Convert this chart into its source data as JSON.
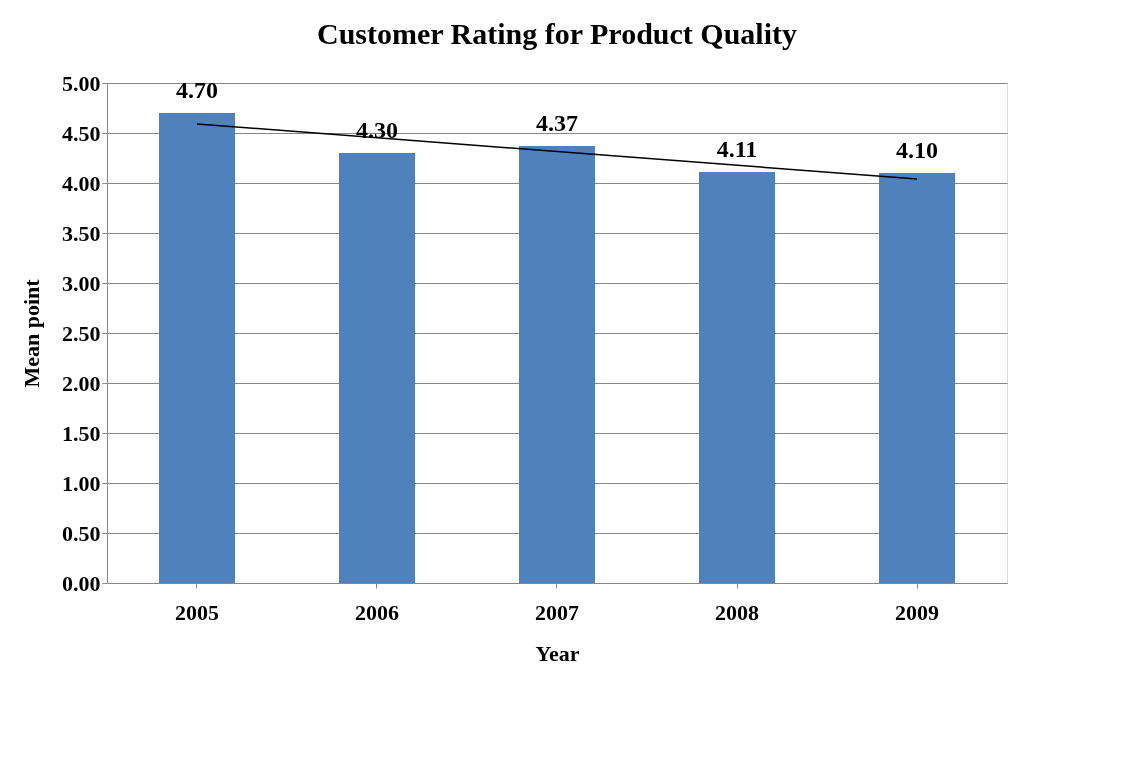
{
  "chart_data": {
    "type": "bar",
    "title": "Customer Rating for Product Quality",
    "xlabel": "Year",
    "ylabel": "Mean point",
    "categories": [
      "2005",
      "2006",
      "2007",
      "2008",
      "2009"
    ],
    "series": [
      {
        "color": "#4f81bd",
        "values": [
          4.7,
          4.3,
          4.37,
          4.11,
          4.1
        ],
        "value_labels": [
          "4.70",
          "4.30",
          "4.37",
          "4.11",
          "4.10"
        ]
      },
      {
        "type": "line",
        "color": "#000000",
        "values": [
          4.59,
          null,
          null,
          null,
          4.04
        ]
      }
    ],
    "ylim": [
      0,
      5
    ],
    "yticks": [
      {
        "value": 0,
        "label": "0.00"
      },
      {
        "value": 0.5,
        "label": "0.50"
      },
      {
        "value": 1,
        "label": "1.00"
      },
      {
        "value": 1.5,
        "label": "1.50"
      },
      {
        "value": 2,
        "label": "2.00"
      },
      {
        "value": 2.5,
        "label": "2.50"
      },
      {
        "value": 3,
        "label": "3.00"
      },
      {
        "value": 3.5,
        "label": "3.50"
      },
      {
        "value": 4,
        "label": "4.00"
      },
      {
        "value": 4.5,
        "label": "4.50"
      },
      {
        "value": 5,
        "label": "5.00"
      }
    ],
    "grid": "y"
  }
}
